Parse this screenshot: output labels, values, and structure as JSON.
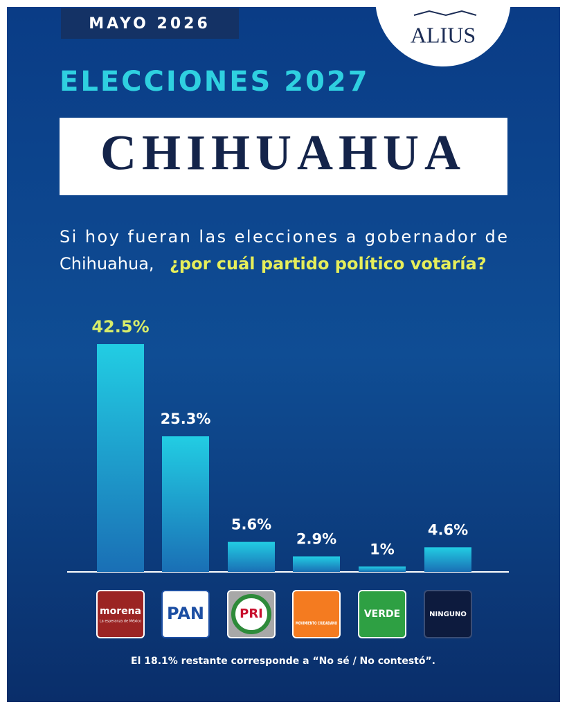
{
  "header": {
    "date": "MAYO 2026",
    "brand": "ALIUS",
    "kicker": "ELECCIONES 2027",
    "title": "CHIHUAHUA"
  },
  "question": {
    "line1": "Si hoy fueran las elecciones a gobernador de",
    "line2": "Chihuahua,",
    "highlight": "¿por cuál partido político votaría?"
  },
  "chart_data": {
    "type": "bar",
    "categories": [
      "morena",
      "PAN",
      "PRI",
      "MOVIMIENTO CIUDADANO",
      "VERDE",
      "NINGUNO"
    ],
    "category_tagline": "La esperanza de México",
    "values": [
      42.5,
      25.3,
      5.6,
      2.9,
      1,
      4.6
    ],
    "value_labels": [
      "42.5%",
      "25.3%",
      "5.6%",
      "2.9%",
      "1%",
      "4.6%"
    ],
    "color": "#1fb8d6"
  },
  "footer": "El 18.1% restante corresponde a “No sé / No contestó”."
}
